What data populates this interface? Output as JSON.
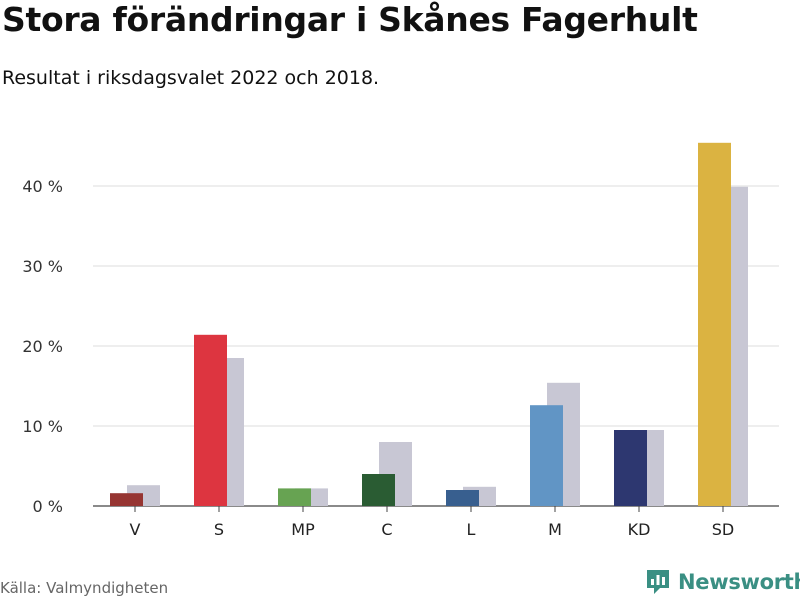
{
  "chart_data": {
    "type": "bar",
    "title": "Stora förändringar i Skånes Fagerhult",
    "subtitle": "Resultat i riksdagsvalet 2022 och 2018.",
    "categories": [
      "V",
      "S",
      "MP",
      "C",
      "L",
      "M",
      "KD",
      "SD"
    ],
    "series": [
      {
        "values": [
          1.6,
          21.4,
          2.2,
          4.0,
          2.0,
          12.6,
          9.5,
          45.4
        ]
      },
      {
        "values": [
          2.6,
          18.5,
          2.2,
          8.0,
          2.4,
          15.4,
          9.5,
          39.9
        ]
      }
    ],
    "colors_2022": [
      "#963532",
      "#dd3540",
      "#67a352",
      "#2a5c33",
      "#385f8f",
      "#6195c5",
      "#2d3770",
      "#dbb341"
    ],
    "color_2018": "#c8c7d4",
    "ylim": [
      0,
      47
    ],
    "yticks": [
      0,
      10,
      20,
      30,
      40
    ],
    "ytick_labels": [
      "0 %",
      "10 %",
      "20 %",
      "30 %",
      "40 %"
    ],
    "xlabel": "",
    "ylabel": "",
    "grid": true
  },
  "source": "Källa: Valmyndigheten",
  "brand": {
    "name": "Newsworthy",
    "icon": "bar-chart-icon",
    "color": "#3a8f83"
  }
}
